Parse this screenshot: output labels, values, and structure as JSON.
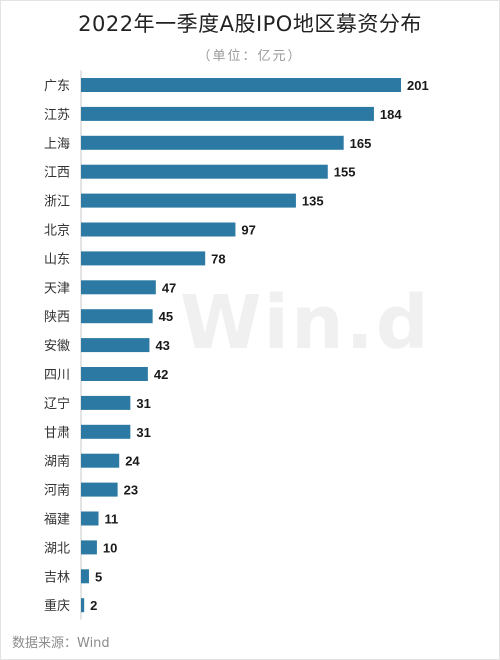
{
  "title": "2022年一季度A股IPO地区募资分布",
  "subtitle": "（单位：亿元）",
  "source": "数据来源：Wind",
  "watermark": "Win.d",
  "colors": {
    "bar": "#2c7aa3",
    "category_text": "#333333",
    "value_text": "#1a1a1a",
    "axis": "#c8c8c8"
  },
  "chart_data": {
    "type": "bar",
    "orientation": "horizontal",
    "title": "2022年一季度A股IPO地区募资分布",
    "subtitle": "（单位：亿元）",
    "categories": [
      "广东",
      "江苏",
      "上海",
      "江西",
      "浙江",
      "北京",
      "山东",
      "天津",
      "陕西",
      "安徽",
      "四川",
      "辽宁",
      "甘肃",
      "湖南",
      "河南",
      "福建",
      "湖北",
      "吉林",
      "重庆"
    ],
    "values": [
      201,
      184,
      165,
      155,
      135,
      97,
      78,
      47,
      45,
      43,
      42,
      31,
      31,
      24,
      23,
      11,
      10,
      5,
      2
    ],
    "data_labels": true,
    "xlim": [
      0,
      201
    ],
    "grid": false,
    "legend": "none"
  }
}
